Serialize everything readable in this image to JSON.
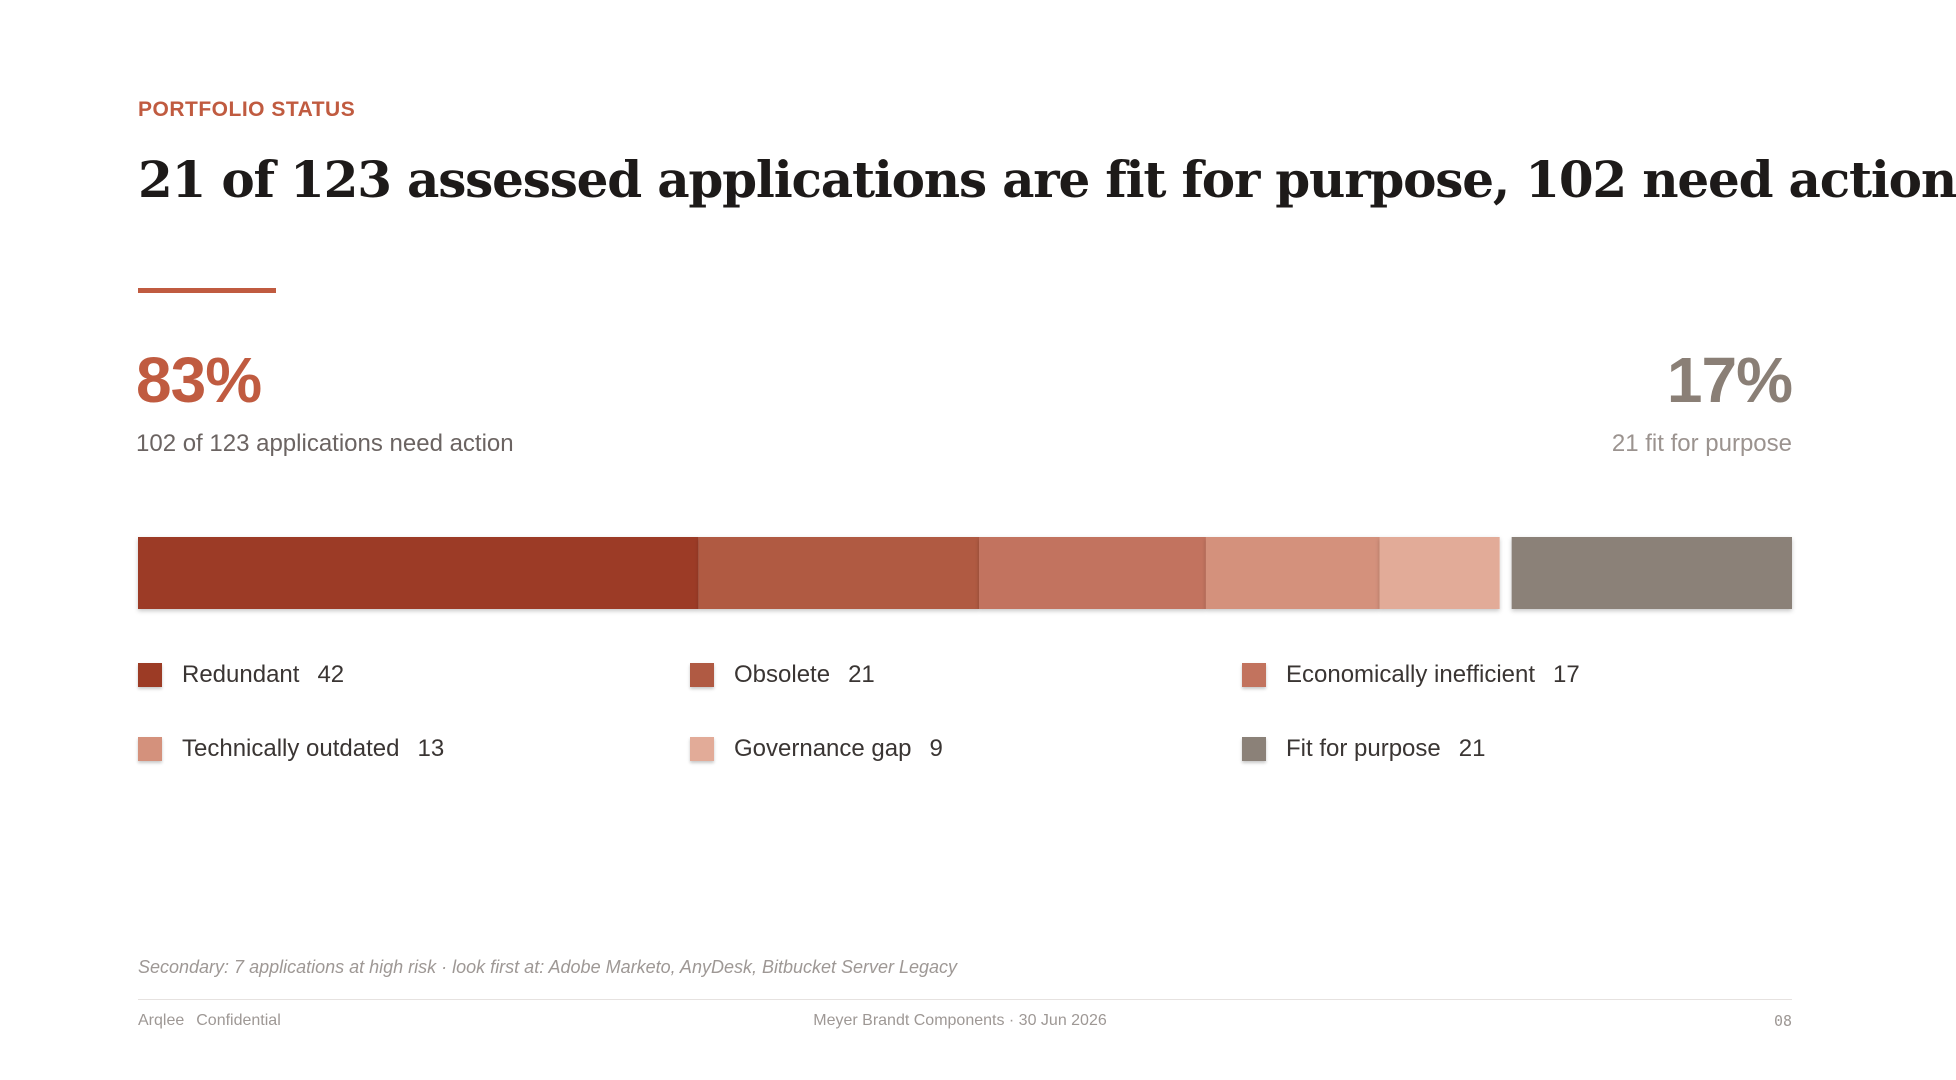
{
  "header": {
    "eyebrow": "PORTFOLIO STATUS",
    "title": "21 of 123 assessed applications are fit for purpose, 102 need action"
  },
  "kpis": {
    "left": {
      "value": "83%",
      "caption": "102 of 123 applications need action"
    },
    "right": {
      "value": "17%",
      "caption": "21 fit for purpose"
    }
  },
  "colors": {
    "accent": "#c05b40",
    "neutral": "#8a7f76"
  },
  "chart_data": {
    "type": "bar",
    "orientation": "horizontal-stacked",
    "total": 123,
    "categories": [
      "Redundant",
      "Obsolete",
      "Economically inefficient",
      "Technically outdated",
      "Governance gap",
      "Fit for purpose"
    ],
    "values": [
      42,
      21,
      17,
      13,
      9,
      21
    ],
    "colors": [
      "#9c3b25",
      "#b05a43",
      "#c2735e",
      "#d4917c",
      "#e2ab98",
      "#8b8178"
    ],
    "groups": [
      {
        "label": "need action",
        "members": [
          0,
          1,
          2,
          3,
          4
        ]
      },
      {
        "label": "fit for purpose",
        "members": [
          5
        ]
      }
    ],
    "legend_position": "bottom",
    "grid": false
  },
  "legend": {
    "items": [
      {
        "label": "Redundant",
        "value": "42"
      },
      {
        "label": "Obsolete",
        "value": "21"
      },
      {
        "label": "Economically inefficient",
        "value": "17"
      },
      {
        "label": "Technically outdated",
        "value": "13"
      },
      {
        "label": "Governance gap",
        "value": "9"
      },
      {
        "label": "Fit for purpose",
        "value": "21"
      }
    ]
  },
  "footnote": "Secondary: 7 applications at high risk · look first at: Adobe Marketo, AnyDesk, Bitbucket Server Legacy",
  "footer": {
    "brand": "Arqlee",
    "classification": "Confidential",
    "center": "Meyer Brandt Components · 30 Jun 2026",
    "page": "08"
  }
}
